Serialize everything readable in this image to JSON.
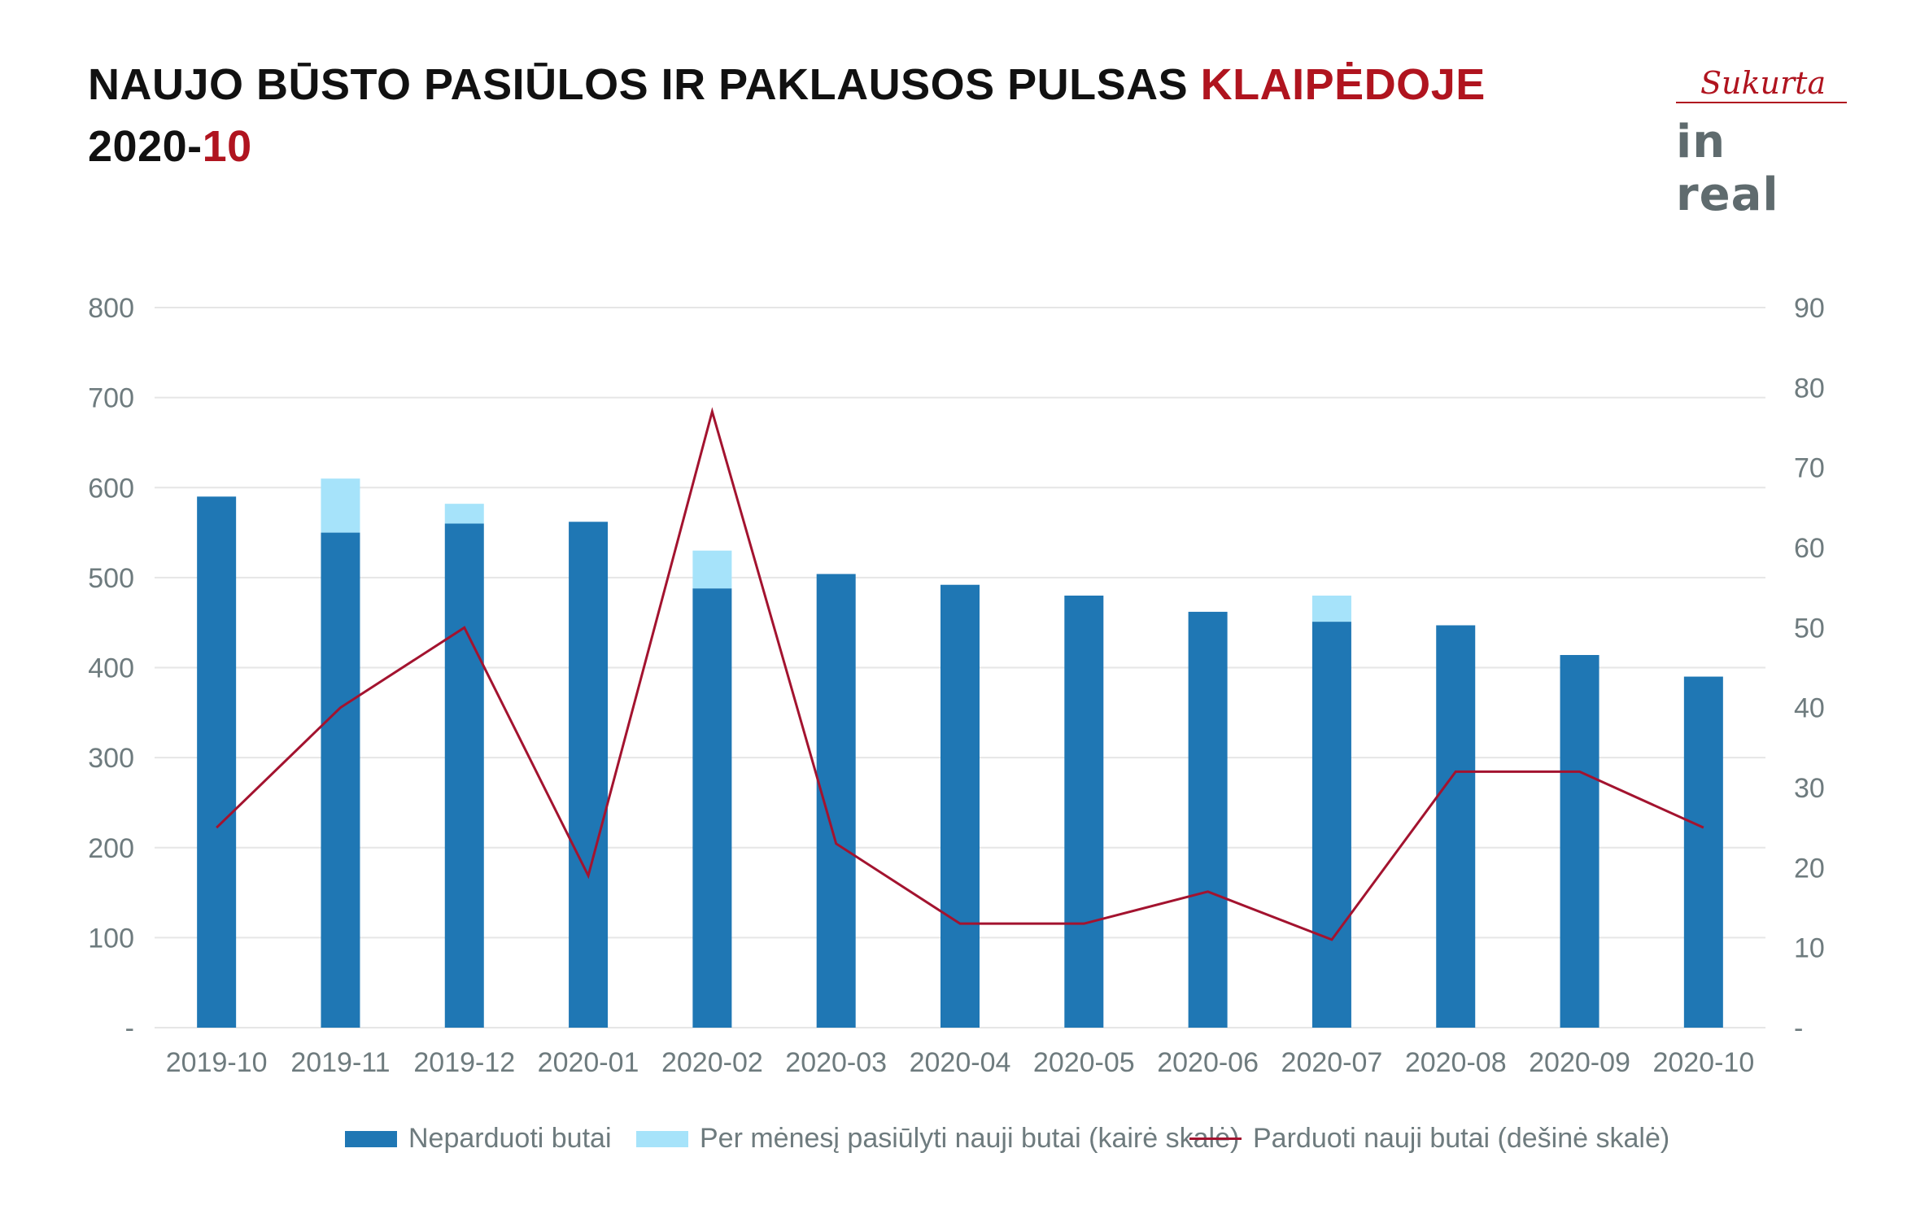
{
  "header": {
    "title_line1": "NAUJO BŪSTO PASIŪLOS IR PAKLAUSOS PULSAS",
    "title_accent": "KLAIPĖDOJE",
    "title_line2_prefix": "2020-",
    "title_line2_accent": "10"
  },
  "logo": {
    "sukurta": "Sukurta",
    "brand": "in real"
  },
  "colors": {
    "unsold": "#1f77b4",
    "offered": "#a6e3fa",
    "sold": "#a3132f",
    "grid": "#e6e6e6",
    "tick": "#6e7b7e",
    "accent": "#b0141f"
  },
  "chart_data": {
    "type": "bar",
    "categories": [
      "2019-10",
      "2019-11",
      "2019-12",
      "2020-01",
      "2020-02",
      "2020-03",
      "2020-04",
      "2020-05",
      "2020-06",
      "2020-07",
      "2020-08",
      "2020-09",
      "2020-10"
    ],
    "series": [
      {
        "name": "Neparduoti butai",
        "type": "bar",
        "axis": "left",
        "values": [
          590,
          550,
          560,
          562,
          488,
          504,
          492,
          480,
          462,
          451,
          447,
          414,
          390
        ]
      },
      {
        "name": "Per mėnesį pasiūlyti nauji butai (kairė skalė)",
        "type": "bar-stacked",
        "axis": "left",
        "values": [
          0,
          60,
          22,
          0,
          42,
          0,
          0,
          0,
          0,
          29,
          0,
          0,
          0
        ]
      },
      {
        "name": "Parduoti nauji butai (dešinė skalė)",
        "type": "line",
        "axis": "right",
        "values": [
          25,
          40,
          50,
          19,
          77,
          23,
          13,
          13,
          17,
          11,
          32,
          32,
          25
        ]
      }
    ],
    "left_axis": {
      "ylim": [
        0,
        800
      ],
      "ticks": [
        "-",
        "100",
        "200",
        "300",
        "400",
        "500",
        "600",
        "700",
        "800"
      ]
    },
    "right_axis": {
      "ylim": [
        0,
        90
      ],
      "ticks": [
        "-",
        "10",
        "20",
        "30",
        "40",
        "50",
        "60",
        "70",
        "80",
        "90"
      ]
    },
    "grid": true,
    "legend_position": "bottom"
  }
}
